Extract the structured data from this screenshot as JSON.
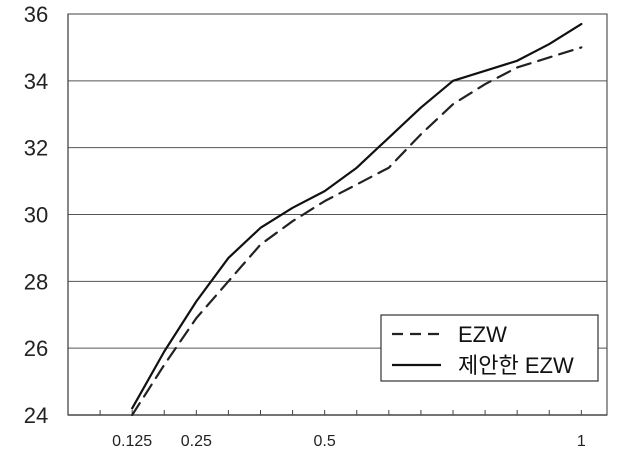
{
  "chart_data": {
    "type": "line",
    "title": "",
    "xlabel": "",
    "ylabel": "",
    "xlim": [
      0.125,
      1
    ],
    "ylim": [
      24,
      36
    ],
    "xticks": [
      0.125,
      0.25,
      0.5,
      1
    ],
    "xtick_labels": [
      "0.125",
      "0.25",
      "0.5",
      "1"
    ],
    "yticks": [
      24,
      26,
      28,
      30,
      32,
      34,
      36
    ],
    "ytick_labels": [
      "24",
      "26",
      "28",
      "30",
      "32",
      "34",
      "36"
    ],
    "grid": "horizontal",
    "legend": "bottom-right",
    "series": [
      {
        "name": "EZW",
        "style": "dashed",
        "color": "#222222",
        "x": [
          0.125,
          0.1875,
          0.25,
          0.3125,
          0.375,
          0.4375,
          0.5,
          0.5625,
          0.625,
          0.6875,
          0.75,
          0.8125,
          0.875,
          0.9375,
          1.0
        ],
        "y": [
          24.0,
          25.5,
          26.9,
          28.0,
          29.1,
          29.8,
          30.4,
          30.9,
          31.4,
          32.4,
          33.3,
          33.9,
          34.4,
          34.7,
          35.0
        ]
      },
      {
        "name": "제안한 EZW",
        "style": "solid",
        "color": "#111111",
        "x": [
          0.125,
          0.1875,
          0.25,
          0.3125,
          0.375,
          0.4375,
          0.5,
          0.5625,
          0.625,
          0.6875,
          0.75,
          0.8125,
          0.875,
          0.9375,
          1.0
        ],
        "y": [
          24.2,
          25.9,
          27.4,
          28.7,
          29.6,
          30.2,
          30.7,
          31.4,
          32.3,
          33.2,
          34.0,
          34.3,
          34.6,
          35.1,
          35.7
        ]
      }
    ]
  }
}
